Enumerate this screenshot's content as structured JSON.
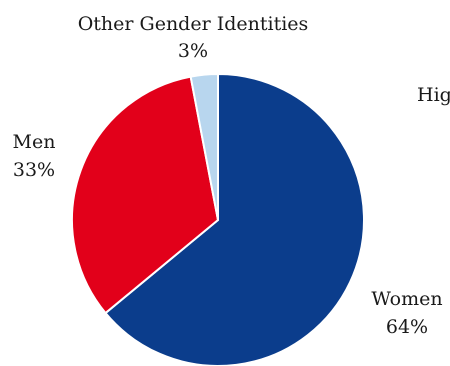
{
  "chart_data": {
    "type": "pie",
    "slices": [
      {
        "label": "Women",
        "percent_label": "64%",
        "value": 64,
        "color": "#0b3d8c"
      },
      {
        "label": "Men",
        "percent_label": "33%",
        "value": 33,
        "color": "#e2001a"
      },
      {
        "label": "Other Gender Identities",
        "percent_label": "3%",
        "value": 3,
        "color": "#b8d6ee"
      }
    ],
    "start_angle_deg": 0,
    "direction": "clockwise",
    "truncated_text": "Hig"
  }
}
